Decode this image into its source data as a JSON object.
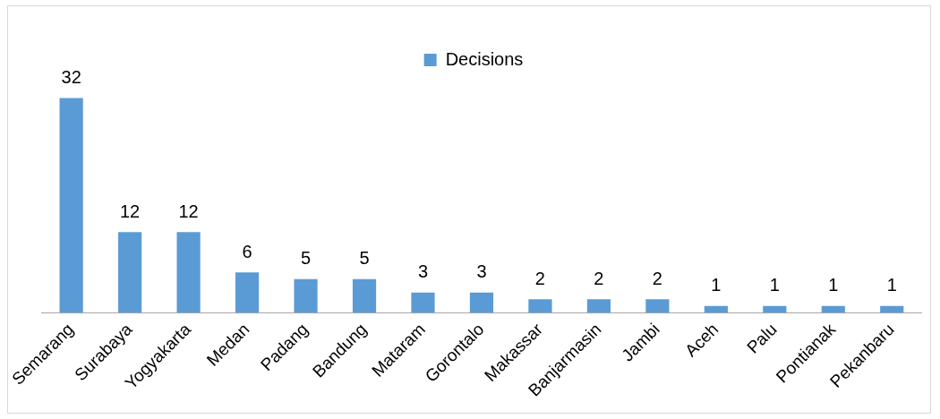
{
  "chart_data": {
    "type": "bar",
    "categories": [
      "Semarang",
      "Surabaya",
      "Yogyakarta",
      "Medan",
      "Padang",
      "Bandung",
      "Mataram",
      "Gorontalo",
      "Makassar",
      "Banjarmasin",
      "Jambi",
      "Aceh",
      "Palu",
      "Pontianak",
      "Pekanbaru"
    ],
    "series": [
      {
        "name": "Decisions",
        "color": "#5b9bd5",
        "values": [
          32,
          12,
          12,
          6,
          5,
          5,
          3,
          3,
          2,
          2,
          2,
          1,
          1,
          1,
          1
        ]
      }
    ],
    "data_labels": true,
    "legend": "top",
    "grid": false
  }
}
